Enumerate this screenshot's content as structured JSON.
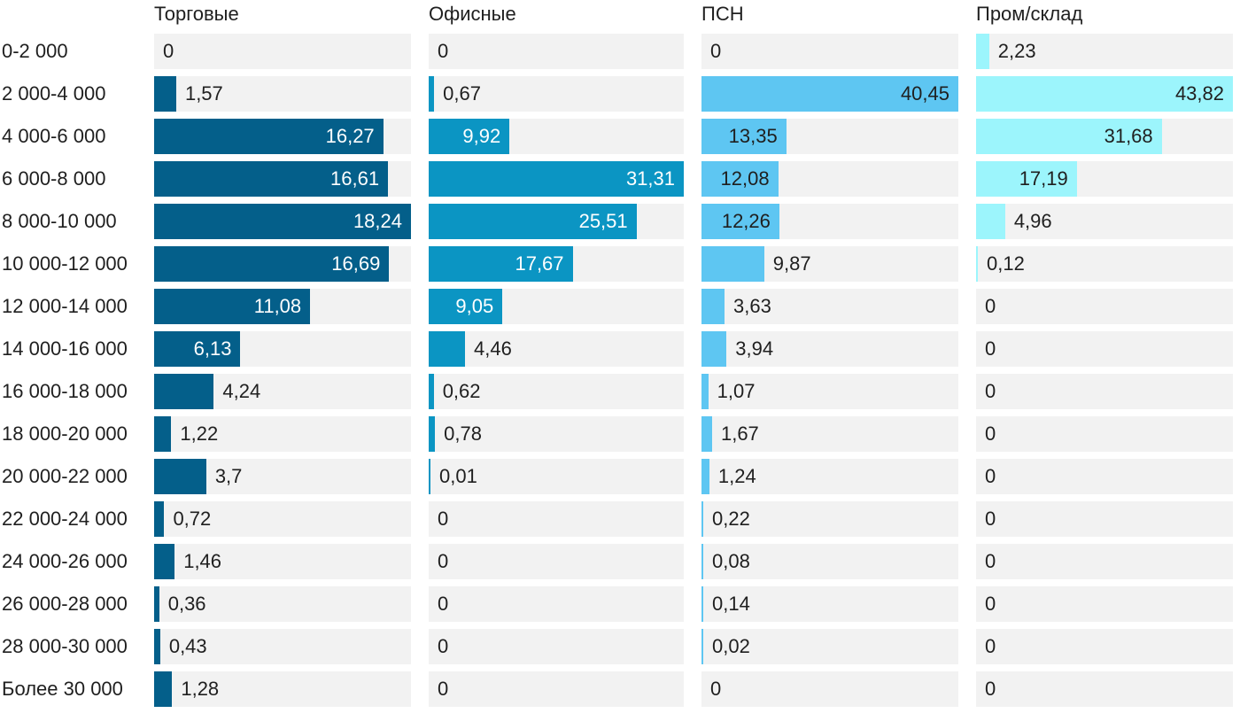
{
  "chart_data": {
    "type": "bar",
    "orientation": "horizontal",
    "layout": "small-multiples",
    "categories": [
      "0-2 000",
      "2 000-4 000",
      "4 000-6 000",
      "6 000-8 000",
      "8 000-10 000",
      "10 000-12 000",
      "12 000-14 000",
      "14 000-16 000",
      "16 000-18 000",
      "18 000-20 000",
      "20 000-22 000",
      "22 000-24 000",
      "24 000-26 000",
      "26 000-28 000",
      "28 000-30 000",
      "Более 30 000"
    ],
    "series": [
      {
        "name": "Торговые",
        "color": "#045f8a",
        "label_inside_color": "#ffffff",
        "values": [
          0,
          1.57,
          16.27,
          16.61,
          18.24,
          16.69,
          11.08,
          6.13,
          4.24,
          1.22,
          3.7,
          0.72,
          1.46,
          0.36,
          0.43,
          1.28
        ],
        "labels": [
          "0",
          "1,57",
          "16,27",
          "16,61",
          "18,24",
          "16,69",
          "11,08",
          "6,13",
          "4,24",
          "1,22",
          "3,7",
          "0,72",
          "1,46",
          "0,36",
          "0,43",
          "1,28"
        ]
      },
      {
        "name": "Офисные",
        "color": "#0b95c3",
        "label_inside_color": "#ffffff",
        "values": [
          0,
          0.67,
          9.92,
          31.31,
          25.51,
          17.67,
          9.05,
          4.46,
          0.62,
          0.78,
          0.01,
          0,
          0,
          0,
          0,
          0
        ],
        "labels": [
          "0",
          "0,67",
          "9,92",
          "31,31",
          "25,51",
          "17,67",
          "9,05",
          "4,46",
          "0,62",
          "0,78",
          "0,01",
          "0",
          "0",
          "0",
          "0",
          "0"
        ]
      },
      {
        "name": "ПСН",
        "color": "#5ec6f2",
        "label_inside_color": "#1f1f1f",
        "values": [
          0,
          40.45,
          13.35,
          12.08,
          12.26,
          9.87,
          3.63,
          3.94,
          1.07,
          1.67,
          1.24,
          0.22,
          0.08,
          0.14,
          0.02,
          0
        ],
        "labels": [
          "0",
          "40,45",
          "13,35",
          "12,08",
          "12,26",
          "9,87",
          "3,63",
          "3,94",
          "1,07",
          "1,67",
          "1,24",
          "0,22",
          "0,08",
          "0,14",
          "0,02",
          "0"
        ]
      },
      {
        "name": "Пром/склад",
        "color": "#9cf5fc",
        "label_inside_color": "#1f1f1f",
        "values": [
          2.23,
          43.82,
          31.68,
          17.19,
          4.96,
          0.12,
          0,
          0,
          0,
          0,
          0,
          0,
          0,
          0,
          0,
          0
        ],
        "labels": [
          "2,23",
          "43,82",
          "31,68",
          "17,19",
          "4,96",
          "0,12",
          "0",
          "0",
          "0",
          "0",
          "0",
          "0",
          "0",
          "0",
          "0",
          "0"
        ]
      }
    ],
    "grid": false,
    "legend": "none"
  }
}
